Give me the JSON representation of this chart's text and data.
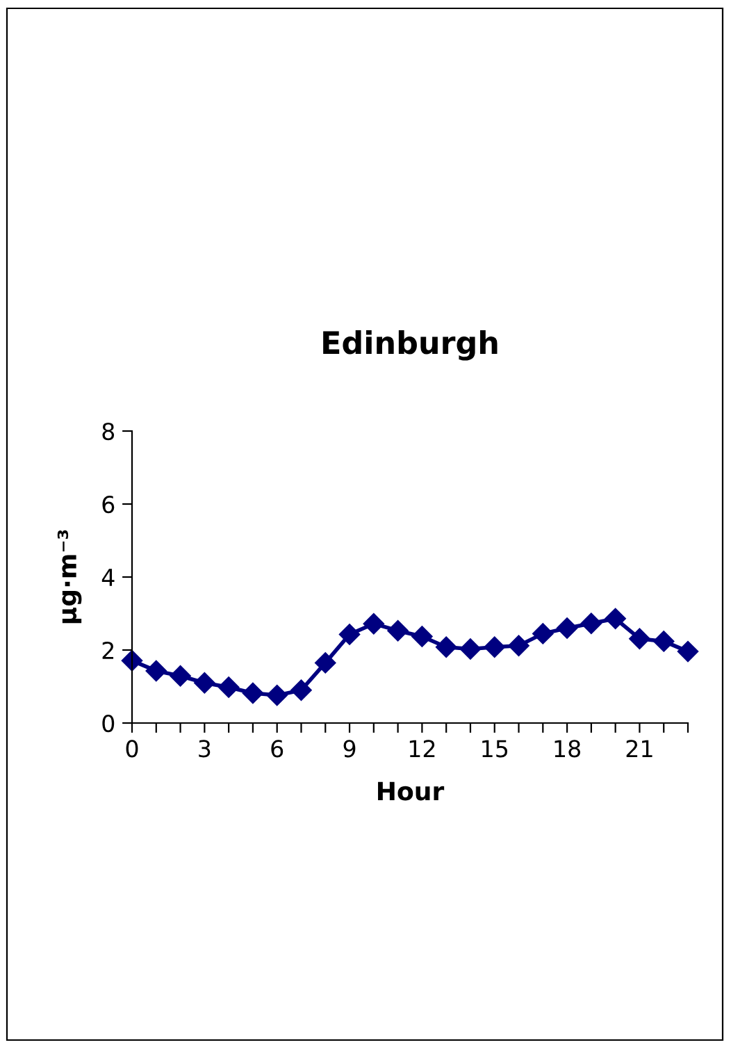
{
  "chart_data": {
    "type": "line",
    "title": "Edinburgh",
    "xlabel": "Hour",
    "ylabel": "µg·m⁻³",
    "x": [
      0,
      1,
      2,
      3,
      4,
      5,
      6,
      7,
      8,
      9,
      10,
      11,
      12,
      13,
      14,
      15,
      16,
      17,
      18,
      19,
      20,
      21,
      22,
      23
    ],
    "series": [
      {
        "color": "#000080",
        "values": [
          1.71,
          1.43,
          1.29,
          1.1,
          0.98,
          0.82,
          0.76,
          0.9,
          1.65,
          2.43,
          2.72,
          2.53,
          2.37,
          2.08,
          2.03,
          2.08,
          2.12,
          2.45,
          2.6,
          2.73,
          2.86,
          2.31,
          2.24,
          1.96
        ]
      }
    ],
    "xlim": [
      0,
      23
    ],
    "xticks": [
      0,
      {
        "value": 1,
        "label": null
      },
      {
        "value": 2,
        "label": null
      },
      3,
      {
        "value": 4,
        "label": null
      },
      {
        "value": 5,
        "label": null
      },
      6,
      {
        "value": 7,
        "label": null
      },
      {
        "value": 8,
        "label": null
      },
      9,
      {
        "value": 10,
        "label": null
      },
      {
        "value": 11,
        "label": null
      },
      12,
      {
        "value": 13,
        "label": null
      },
      {
        "value": 14,
        "label": null
      },
      15,
      {
        "value": 16,
        "label": null
      },
      {
        "value": 17,
        "label": null
      },
      18,
      {
        "value": 19,
        "label": null
      },
      {
        "value": 20,
        "label": null
      },
      21,
      {
        "value": 22,
        "label": null
      },
      {
        "value": 23,
        "label": null
      }
    ],
    "ylim": [
      0,
      8
    ],
    "yticks": [
      0,
      2,
      4,
      6,
      8
    ],
    "marker": "diamond",
    "line_style": "solid",
    "grid": false
  }
}
